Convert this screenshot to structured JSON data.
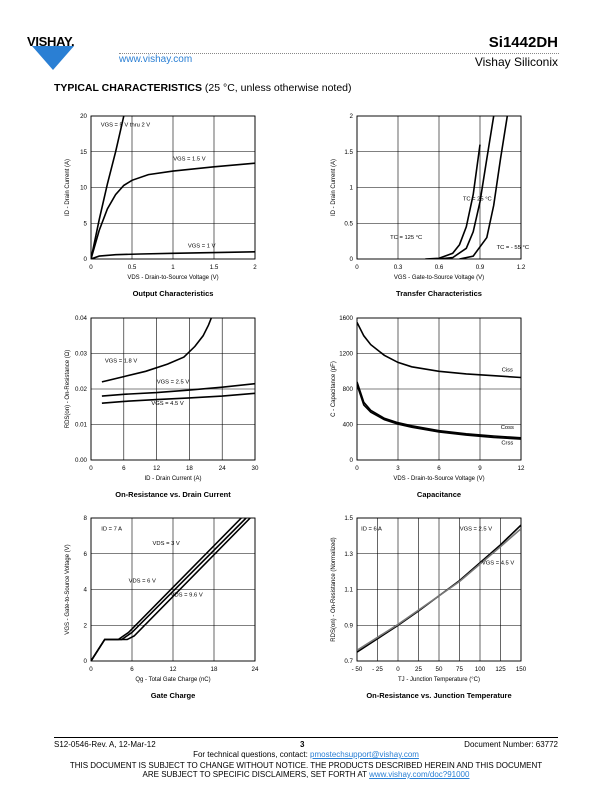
{
  "header": {
    "brand": "VISHAY.",
    "url": "www.vishay.com",
    "part_number": "Si1442DH",
    "company": "Vishay Siliconix"
  },
  "section": {
    "title": "TYPICAL CHARACTERISTICS",
    "condition": "(25 °C, unless otherwise noted)"
  },
  "footer": {
    "revision": "S12-0546-Rev. A, 12-Mar-12",
    "page": "3",
    "doc_number": "Document Number: 63772",
    "contact_prefix": "For technical questions, contact:",
    "contact_email": "pmostechsupport@vishay.com",
    "notice1": "THIS DOCUMENT IS SUBJECT TO CHANGE WITHOUT NOTICE. THE PRODUCTS DESCRIBED HEREIN AND THIS DOCUMENT",
    "notice2_prefix": "ARE SUBJECT TO SPECIFIC DISCLAIMERS, SET FORTH AT",
    "notice2_link": "www.vishay.com/doc?91000"
  },
  "chart_data": [
    {
      "type": "line",
      "title": "Output Characteristics",
      "xlabel": "VDS - Drain-to-Source Voltage (V)",
      "ylabel": "ID - Drain Current (A)",
      "xlim": [
        0,
        2
      ],
      "ylim": [
        0,
        20
      ],
      "xticks": [
        "0",
        "0.5",
        "1",
        "1.5",
        "2"
      ],
      "yticks": [
        "0",
        "5",
        "10",
        "15",
        "20"
      ],
      "grid": true,
      "series": [
        {
          "name": "VGS = 5 V thru 2 V",
          "x": [
            0,
            0.1,
            0.2,
            0.3,
            0.35,
            0.4
          ],
          "y": [
            0,
            5.5,
            10.5,
            15,
            17.5,
            20
          ]
        },
        {
          "name": "VGS = 1.5 V",
          "x": [
            0,
            0.1,
            0.2,
            0.3,
            0.4,
            0.5,
            0.7,
            1.0,
            1.5,
            2.0
          ],
          "y": [
            0,
            4,
            7,
            9,
            10.3,
            11,
            11.8,
            12.3,
            12.9,
            13.4
          ]
        },
        {
          "name": "VGS = 1 V",
          "x": [
            0,
            0.1,
            0.3,
            0.6,
            1.0,
            1.5,
            2.0
          ],
          "y": [
            0,
            0.4,
            0.6,
            0.7,
            0.8,
            0.9,
            1.0
          ]
        }
      ]
    },
    {
      "type": "line",
      "title": "Transfer Characteristics",
      "xlabel": "VGS - Gate-to-Source Voltage (V)",
      "ylabel": "ID - Drain Current (A)",
      "xlim": [
        0,
        1.2
      ],
      "ylim": [
        0,
        2
      ],
      "xticks": [
        "0",
        "0.3",
        "0.6",
        "0.9",
        "1.2"
      ],
      "yticks": [
        "0",
        "0.5",
        "1",
        "1.5",
        "2"
      ],
      "grid": true,
      "series": [
        {
          "name": "TC = 125 °C",
          "x": [
            0.5,
            0.6,
            0.7,
            0.75,
            0.8,
            0.85,
            0.9
          ],
          "y": [
            0,
            0.01,
            0.08,
            0.2,
            0.45,
            0.9,
            1.6
          ]
        },
        {
          "name": "TC = 25 °C",
          "x": [
            0.6,
            0.7,
            0.8,
            0.85,
            0.9,
            0.95,
            1.0
          ],
          "y": [
            0,
            0.02,
            0.15,
            0.38,
            0.8,
            1.4,
            2.0
          ]
        },
        {
          "name": "TC = - 55 °C",
          "x": [
            0.75,
            0.85,
            0.95,
            1.0,
            1.05,
            1.1
          ],
          "y": [
            0,
            0.04,
            0.3,
            0.75,
            1.4,
            2.0
          ]
        }
      ]
    },
    {
      "type": "line",
      "title": "On-Resistance vs. Drain Current",
      "xlabel": "ID - Drain Current (A)",
      "ylabel": "RDS(on) - On-Resistance (Ω)",
      "xlim": [
        0,
        30
      ],
      "ylim": [
        0,
        0.04
      ],
      "xticks": [
        "0",
        "6",
        "12",
        "18",
        "24",
        "30"
      ],
      "yticks": [
        "0.00",
        "0.01",
        "0.02",
        "0.03",
        "0.04"
      ],
      "grid": true,
      "series": [
        {
          "name": "VGS = 1.8 V",
          "x": [
            2,
            6,
            10,
            14,
            17,
            19,
            20.5,
            21.5,
            22
          ],
          "y": [
            0.022,
            0.0235,
            0.025,
            0.027,
            0.029,
            0.032,
            0.035,
            0.038,
            0.04
          ]
        },
        {
          "name": "VGS = 2.5 V",
          "x": [
            2,
            6,
            12,
            18,
            24,
            30
          ],
          "y": [
            0.018,
            0.0185,
            0.019,
            0.0197,
            0.0205,
            0.0215
          ]
        },
        {
          "name": "VGS = 4.5 V",
          "x": [
            2,
            6,
            12,
            18,
            24,
            30
          ],
          "y": [
            0.016,
            0.0165,
            0.017,
            0.0175,
            0.018,
            0.0188
          ]
        }
      ]
    },
    {
      "type": "line",
      "title": "Capacitance",
      "xlabel": "VDS - Drain-to-Source Voltage (V)",
      "ylabel": "C - Capacitance (pF)",
      "xlim": [
        0,
        12
      ],
      "ylim": [
        0,
        1600
      ],
      "xticks": [
        "0",
        "3",
        "6",
        "9",
        "12"
      ],
      "yticks": [
        "0",
        "400",
        "800",
        "1200",
        "1600"
      ],
      "grid": true,
      "series": [
        {
          "name": "Ciss",
          "x": [
            0,
            0.5,
            1,
            2,
            3,
            4,
            6,
            8,
            10,
            12
          ],
          "y": [
            1550,
            1400,
            1300,
            1180,
            1100,
            1050,
            1000,
            970,
            950,
            930
          ]
        },
        {
          "name": "Coss",
          "x": [
            0,
            0.5,
            1,
            2,
            3,
            4,
            6,
            8,
            10,
            12
          ],
          "y": [
            880,
            650,
            560,
            470,
            420,
            385,
            330,
            295,
            270,
            250
          ]
        },
        {
          "name": "Crss",
          "x": [
            0,
            0.5,
            1,
            2,
            3,
            4,
            6,
            8,
            10,
            12
          ],
          "y": [
            850,
            620,
            540,
            455,
            405,
            370,
            315,
            280,
            255,
            235
          ]
        }
      ]
    },
    {
      "type": "line",
      "title": "Gate Charge",
      "xlabel": "Qg - Total Gate Charge (nC)",
      "ylabel": "VGS - Gate-to-Source Voltage (V)",
      "xlim": [
        0,
        24
      ],
      "ylim": [
        0,
        8
      ],
      "xticks": [
        "0",
        "6",
        "12",
        "18",
        "24"
      ],
      "yticks": [
        "0",
        "2",
        "4",
        "6",
        "8"
      ],
      "grid": true,
      "annotations": [
        "ID = 7 A"
      ],
      "series": [
        {
          "name": "VDS = 3 V",
          "x": [
            0,
            2,
            4,
            5.5,
            22
          ],
          "y": [
            0,
            1.2,
            1.2,
            1.6,
            8
          ]
        },
        {
          "name": "VDS = 6 V",
          "x": [
            0,
            2,
            4.5,
            6,
            22.7
          ],
          "y": [
            0,
            1.2,
            1.2,
            1.6,
            8
          ]
        },
        {
          "name": "VDS = 9.6 V",
          "x": [
            0,
            2,
            5.3,
            6.3,
            23.3
          ],
          "y": [
            0,
            1.2,
            1.2,
            1.4,
            8
          ]
        }
      ]
    },
    {
      "type": "line",
      "title": "On-Resistance vs. Junction Temperature",
      "xlabel": "TJ - Junction Temperature (°C)",
      "ylabel": "RDS(on) - On-Resistance (Normalized)",
      "xlim": [
        -50,
        150
      ],
      "ylim": [
        0.7,
        1.5
      ],
      "xticks": [
        "- 50",
        "- 25",
        "0",
        "25",
        "50",
        "75",
        "100",
        "125",
        "150"
      ],
      "yticks": [
        "0.7",
        "0.9",
        "1.1",
        "1.3",
        "1.5"
      ],
      "grid": true,
      "annotations": [
        "ID = 6 A"
      ],
      "series": [
        {
          "name": "VGS = 2.5 V",
          "x": [
            -50,
            0,
            25,
            75,
            125,
            150
          ],
          "y": [
            0.75,
            0.9,
            0.98,
            1.15,
            1.35,
            1.46
          ]
        },
        {
          "name": "VGS = 4.5 V",
          "x": [
            -50,
            0,
            25,
            75,
            125,
            150
          ],
          "y": [
            0.76,
            0.905,
            0.985,
            1.145,
            1.34,
            1.44
          ]
        }
      ]
    }
  ]
}
